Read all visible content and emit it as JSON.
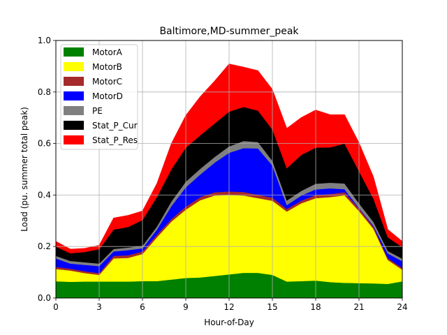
{
  "chart_data": {
    "type": "area",
    "stacked": true,
    "title": "Baltimore,MD-summer_peak",
    "xlabel": "Hour-of-Day",
    "ylabel": "Load (pu. summer total peak)",
    "xlim": [
      0,
      24
    ],
    "ylim": [
      0,
      1.0
    ],
    "grid": true,
    "legend_position": "upper-left",
    "x": [
      0,
      1,
      2,
      3,
      4,
      5,
      6,
      7,
      8,
      9,
      10,
      11,
      12,
      13,
      14,
      15,
      16,
      17,
      18,
      19,
      20,
      21,
      22,
      23,
      24
    ],
    "x_ticks": [
      "0",
      "3",
      "6",
      "9",
      "12",
      "15",
      "18",
      "21",
      "24"
    ],
    "y_ticks": [
      "0.0",
      "0.2",
      "0.4",
      "0.6",
      "0.8",
      "1.0"
    ],
    "series": [
      {
        "name": "MotorA",
        "color": "#008000",
        "values": [
          0.065,
          0.063,
          0.064,
          0.064,
          0.064,
          0.064,
          0.066,
          0.066,
          0.072,
          0.078,
          0.08,
          0.086,
          0.092,
          0.098,
          0.098,
          0.09,
          0.064,
          0.066,
          0.068,
          0.062,
          0.059,
          0.058,
          0.057,
          0.055,
          0.065
        ]
      },
      {
        "name": "MotorB",
        "color": "#ffff00",
        "values": [
          0.048,
          0.044,
          0.033,
          0.026,
          0.09,
          0.092,
          0.105,
          0.17,
          0.225,
          0.265,
          0.3,
          0.312,
          0.308,
          0.3,
          0.29,
          0.288,
          0.272,
          0.302,
          0.32,
          0.33,
          0.34,
          0.28,
          0.212,
          0.093,
          0.045
        ]
      },
      {
        "name": "MotorC",
        "color": "#a52a2a",
        "values": [
          0.008,
          0.007,
          0.007,
          0.007,
          0.01,
          0.01,
          0.01,
          0.01,
          0.01,
          0.012,
          0.012,
          0.013,
          0.014,
          0.014,
          0.013,
          0.012,
          0.01,
          0.01,
          0.012,
          0.012,
          0.012,
          0.01,
          0.008,
          0.007,
          0.007
        ]
      },
      {
        "name": "MotorD",
        "color": "#0000ff",
        "values": [
          0.033,
          0.02,
          0.025,
          0.027,
          0.017,
          0.02,
          0.012,
          0.02,
          0.05,
          0.075,
          0.088,
          0.115,
          0.15,
          0.17,
          0.18,
          0.125,
          0.015,
          0.02,
          0.022,
          0.022,
          0.012,
          0.002,
          0.004,
          0.018,
          0.026
        ]
      },
      {
        "name": "PE",
        "color": "#808080",
        "values": [
          0.01,
          0.01,
          0.01,
          0.01,
          0.01,
          0.01,
          0.01,
          0.012,
          0.018,
          0.022,
          0.022,
          0.022,
          0.025,
          0.028,
          0.025,
          0.018,
          0.018,
          0.018,
          0.022,
          0.022,
          0.022,
          0.018,
          0.015,
          0.01,
          0.01
        ]
      },
      {
        "name": "Stat_P_Cur",
        "color": "#000000",
        "values": [
          0.036,
          0.03,
          0.04,
          0.056,
          0.075,
          0.08,
          0.1,
          0.115,
          0.125,
          0.132,
          0.13,
          0.13,
          0.135,
          0.132,
          0.122,
          0.122,
          0.125,
          0.14,
          0.14,
          0.137,
          0.155,
          0.125,
          0.09,
          0.053,
          0.045
        ]
      },
      {
        "name": "Stat_P_Res",
        "color": "#ff0000",
        "values": [
          0.02,
          0.016,
          0.014,
          0.015,
          0.045,
          0.045,
          0.035,
          0.052,
          0.1,
          0.125,
          0.15,
          0.165,
          0.185,
          0.155,
          0.155,
          0.155,
          0.155,
          0.145,
          0.146,
          0.127,
          0.112,
          0.11,
          0.085,
          0.03,
          0.022
        ]
      }
    ]
  }
}
